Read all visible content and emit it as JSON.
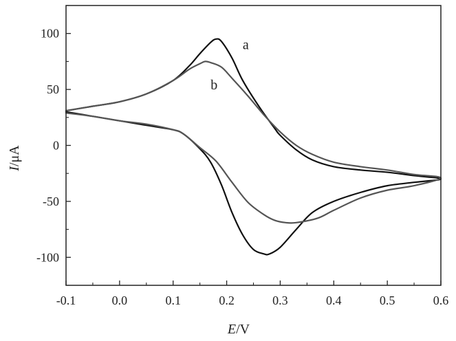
{
  "chart_data": {
    "type": "line",
    "title": "",
    "xlabel": {
      "var": "E",
      "unit": "/V"
    },
    "ylabel": {
      "var": "I",
      "unit": "/μA"
    },
    "xlim": [
      -0.1,
      0.6
    ],
    "ylim": [
      -125,
      125
    ],
    "xticks": [
      -0.1,
      0.0,
      0.1,
      0.2,
      0.3,
      0.4,
      0.5,
      0.6
    ],
    "xtick_labels": [
      "-0.1",
      "0.0",
      "0.1",
      "0.2",
      "0.3",
      "0.4",
      "0.5",
      "0.6"
    ],
    "yticks": [
      -100,
      -50,
      0,
      50,
      100
    ],
    "ytick_labels": [
      "-100",
      "-50",
      "0",
      "50",
      "100"
    ],
    "grid": false,
    "series": [
      {
        "label": "a",
        "label_pos": {
          "x": 0.23,
          "y": 86
        },
        "color": "#111111",
        "points": [
          [
            -0.1,
            31
          ],
          [
            -0.05,
            35
          ],
          [
            0.0,
            39
          ],
          [
            0.05,
            46
          ],
          [
            0.1,
            58
          ],
          [
            0.13,
            71
          ],
          [
            0.15,
            82
          ],
          [
            0.17,
            92
          ],
          [
            0.18,
            95
          ],
          [
            0.19,
            93
          ],
          [
            0.21,
            78
          ],
          [
            0.23,
            58
          ],
          [
            0.26,
            35
          ],
          [
            0.29,
            15
          ],
          [
            0.3,
            9
          ],
          [
            0.33,
            -4
          ],
          [
            0.36,
            -13
          ],
          [
            0.4,
            -19
          ],
          [
            0.45,
            -22
          ],
          [
            0.5,
            -24
          ],
          [
            0.55,
            -27
          ],
          [
            0.6,
            -30
          ],
          [
            0.55,
            -33
          ],
          [
            0.5,
            -36
          ],
          [
            0.45,
            -42
          ],
          [
            0.4,
            -50
          ],
          [
            0.36,
            -60
          ],
          [
            0.33,
            -75
          ],
          [
            0.3,
            -91
          ],
          [
            0.28,
            -97
          ],
          [
            0.27,
            -97
          ],
          [
            0.25,
            -93
          ],
          [
            0.23,
            -80
          ],
          [
            0.21,
            -60
          ],
          [
            0.19,
            -35
          ],
          [
            0.17,
            -15
          ],
          [
            0.15,
            -3
          ],
          [
            0.12,
            10
          ],
          [
            0.1,
            14
          ],
          [
            0.05,
            18
          ],
          [
            0.0,
            22
          ],
          [
            -0.05,
            26
          ],
          [
            -0.1,
            30
          ]
        ]
      },
      {
        "label": "b",
        "label_pos": {
          "x": 0.17,
          "y": 50
        },
        "color": "#555555",
        "points": [
          [
            -0.1,
            31
          ],
          [
            -0.05,
            35
          ],
          [
            0.0,
            39
          ],
          [
            0.05,
            46
          ],
          [
            0.1,
            58
          ],
          [
            0.13,
            68
          ],
          [
            0.15,
            73
          ],
          [
            0.16,
            75
          ],
          [
            0.17,
            74
          ],
          [
            0.19,
            70
          ],
          [
            0.21,
            60
          ],
          [
            0.24,
            44
          ],
          [
            0.27,
            27
          ],
          [
            0.3,
            12
          ],
          [
            0.33,
            0
          ],
          [
            0.36,
            -8
          ],
          [
            0.4,
            -15
          ],
          [
            0.45,
            -19
          ],
          [
            0.5,
            -22
          ],
          [
            0.55,
            -26
          ],
          [
            0.6,
            -29
          ],
          [
            0.55,
            -36
          ],
          [
            0.5,
            -40
          ],
          [
            0.45,
            -47
          ],
          [
            0.4,
            -58
          ],
          [
            0.37,
            -65
          ],
          [
            0.33,
            -69
          ],
          [
            0.31,
            -69
          ],
          [
            0.29,
            -67
          ],
          [
            0.27,
            -62
          ],
          [
            0.24,
            -51
          ],
          [
            0.21,
            -33
          ],
          [
            0.18,
            -14
          ],
          [
            0.15,
            -2
          ],
          [
            0.12,
            10
          ],
          [
            0.1,
            14
          ],
          [
            0.05,
            19
          ],
          [
            0.0,
            22
          ],
          [
            -0.05,
            26
          ],
          [
            -0.1,
            29
          ]
        ]
      }
    ]
  }
}
